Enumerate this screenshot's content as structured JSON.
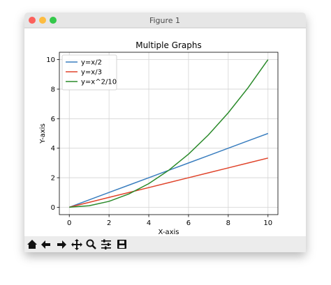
{
  "window": {
    "title": "Figure 1"
  },
  "chart_data": {
    "type": "line",
    "title": "Multiple Graphs",
    "xlabel": "X-axis",
    "ylabel": "Y-axis",
    "x": [
      0,
      1,
      2,
      3,
      4,
      5,
      6,
      7,
      8,
      9,
      10
    ],
    "series": [
      {
        "name": "y=x/2",
        "color": "#3a7ebf",
        "values": [
          0,
          0.5,
          1,
          1.5,
          2,
          2.5,
          3,
          3.5,
          4,
          4.5,
          5
        ]
      },
      {
        "name": "y=x/3",
        "color": "#e0442b",
        "values": [
          0,
          0.333,
          0.667,
          1,
          1.333,
          1.667,
          2,
          2.333,
          2.667,
          3,
          3.333
        ]
      },
      {
        "name": "y=x^2/10",
        "color": "#2a8a2a",
        "values": [
          0,
          0.1,
          0.4,
          0.9,
          1.6,
          2.5,
          3.6,
          4.9,
          6.4,
          8.1,
          10
        ]
      }
    ],
    "xlim": [
      -0.5,
      10.5
    ],
    "ylim": [
      -0.5,
      10.5
    ],
    "xticks": [
      0,
      2,
      4,
      6,
      8,
      10
    ],
    "yticks": [
      0,
      2,
      4,
      6,
      8,
      10
    ],
    "grid": true,
    "legend": "upper left"
  }
}
